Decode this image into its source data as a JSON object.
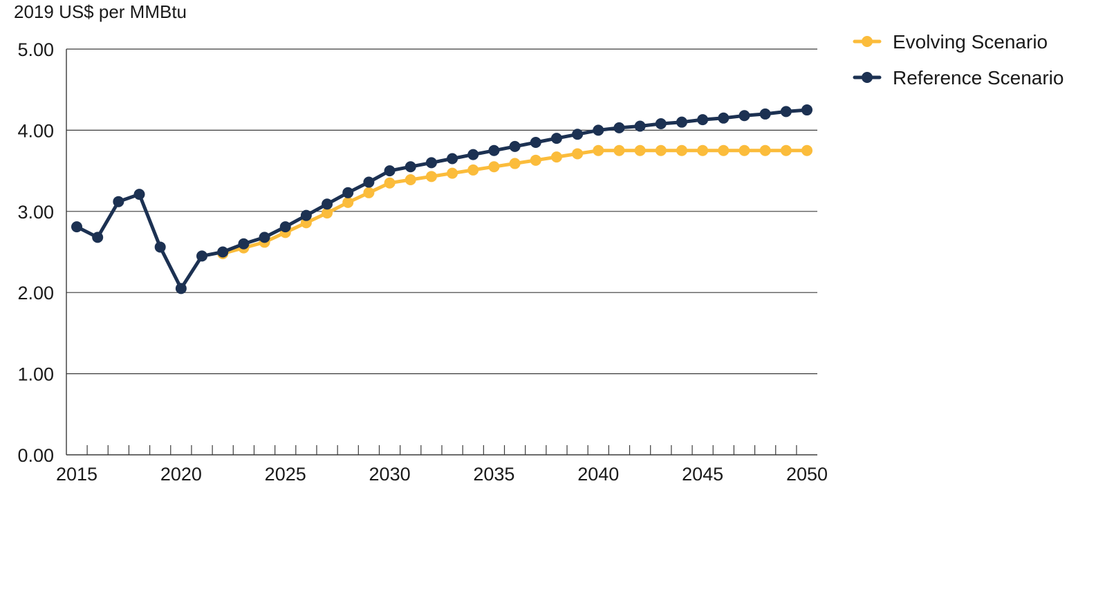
{
  "chart_data": {
    "type": "line",
    "title": "",
    "xlabel": "",
    "ylabel": "2019 US$ per MMBtu",
    "ylim": [
      0,
      5
    ],
    "xlim": [
      2015,
      2050
    ],
    "y_ticks": [
      "0.00",
      "1.00",
      "2.00",
      "3.00",
      "4.00",
      "5.00"
    ],
    "x_ticks": [
      "2015",
      "2020",
      "2025",
      "2030",
      "2035",
      "2040",
      "2045",
      "2050"
    ],
    "grid": "horizontal",
    "legend_position": "top-right",
    "series": [
      {
        "name": "Evolving Scenario",
        "color": "#fbbc3b",
        "x": [
          2022,
          2023,
          2024,
          2025,
          2026,
          2027,
          2028,
          2029,
          2030,
          2031,
          2032,
          2033,
          2034,
          2035,
          2036,
          2037,
          2038,
          2039,
          2040,
          2041,
          2042,
          2043,
          2044,
          2045,
          2046,
          2047,
          2048,
          2049,
          2050
        ],
        "values": [
          2.48,
          2.55,
          2.62,
          2.74,
          2.86,
          2.98,
          3.11,
          3.23,
          3.35,
          3.39,
          3.43,
          3.47,
          3.51,
          3.55,
          3.59,
          3.63,
          3.67,
          3.71,
          3.75,
          3.75,
          3.75,
          3.75,
          3.75,
          3.75,
          3.75,
          3.75,
          3.75,
          3.75,
          3.75
        ]
      },
      {
        "name": "Reference Scenario",
        "color": "#1c3152",
        "x": [
          2015,
          2016,
          2017,
          2018,
          2019,
          2020,
          2021,
          2022,
          2023,
          2024,
          2025,
          2026,
          2027,
          2028,
          2029,
          2030,
          2031,
          2032,
          2033,
          2034,
          2035,
          2036,
          2037,
          2038,
          2039,
          2040,
          2041,
          2042,
          2043,
          2044,
          2045,
          2046,
          2047,
          2048,
          2049,
          2050
        ],
        "values": [
          2.81,
          2.68,
          3.12,
          3.21,
          2.56,
          2.05,
          2.45,
          2.5,
          2.6,
          2.68,
          2.81,
          2.95,
          3.09,
          3.23,
          3.36,
          3.5,
          3.55,
          3.6,
          3.65,
          3.7,
          3.75,
          3.8,
          3.85,
          3.9,
          3.95,
          4.0,
          4.03,
          4.05,
          4.08,
          4.1,
          4.13,
          4.15,
          4.18,
          4.2,
          4.23,
          4.25
        ]
      }
    ]
  }
}
